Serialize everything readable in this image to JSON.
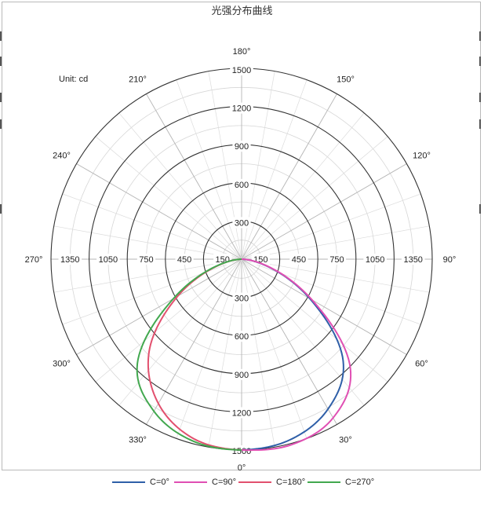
{
  "title": "光强分布曲线",
  "unit_label": "Unit: cd",
  "colors": {
    "c0": "#2f5fa8",
    "c90": "#e04fb3",
    "c180": "#e2506e",
    "c270": "#42a84f"
  },
  "chart_data": {
    "type": "polar",
    "title": "光强分布曲线",
    "unit": "Unit: cd",
    "r_max": 1500,
    "rings": [
      300,
      600,
      900,
      1200,
      1500
    ],
    "angle_labels": [
      "180°",
      "150°",
      "120°",
      "90°",
      "60°",
      "30°",
      "0°",
      "330°",
      "300°",
      "270°",
      "240°",
      "210°"
    ],
    "tick_labels_up": [
      "300",
      "600",
      "900",
      "1200",
      "1500"
    ],
    "tick_labels_down": [
      "300",
      "600",
      "900",
      "1200",
      "1500"
    ],
    "tick_labels_left": [
      "150",
      "450",
      "750",
      "1050",
      "1350"
    ],
    "tick_labels_right": [
      "150",
      "450",
      "750",
      "1050",
      "1350"
    ],
    "angles": [
      0,
      15,
      30,
      45,
      60,
      75,
      90
    ],
    "series": [
      {
        "name": "C=0°",
        "color": "#2f5fa8",
        "values": [
          1500,
          1470,
          1360,
          1130,
          620,
          200,
          0
        ]
      },
      {
        "name": "C=90°",
        "color": "#e04fb3",
        "values": [
          1500,
          1510,
          1440,
          1210,
          640,
          210,
          0
        ]
      },
      {
        "name": "C=180°",
        "color": "#e2506e",
        "values": [
          1500,
          1460,
          1310,
          1030,
          580,
          190,
          0
        ]
      },
      {
        "name": "C=270°",
        "color": "#42a84f",
        "values": [
          1500,
          1480,
          1380,
          1160,
          620,
          200,
          0
        ]
      }
    ],
    "legend": [
      "C=0°",
      "C=90°",
      "C=180°",
      "C=270°"
    ],
    "legend_position": "bottom"
  }
}
